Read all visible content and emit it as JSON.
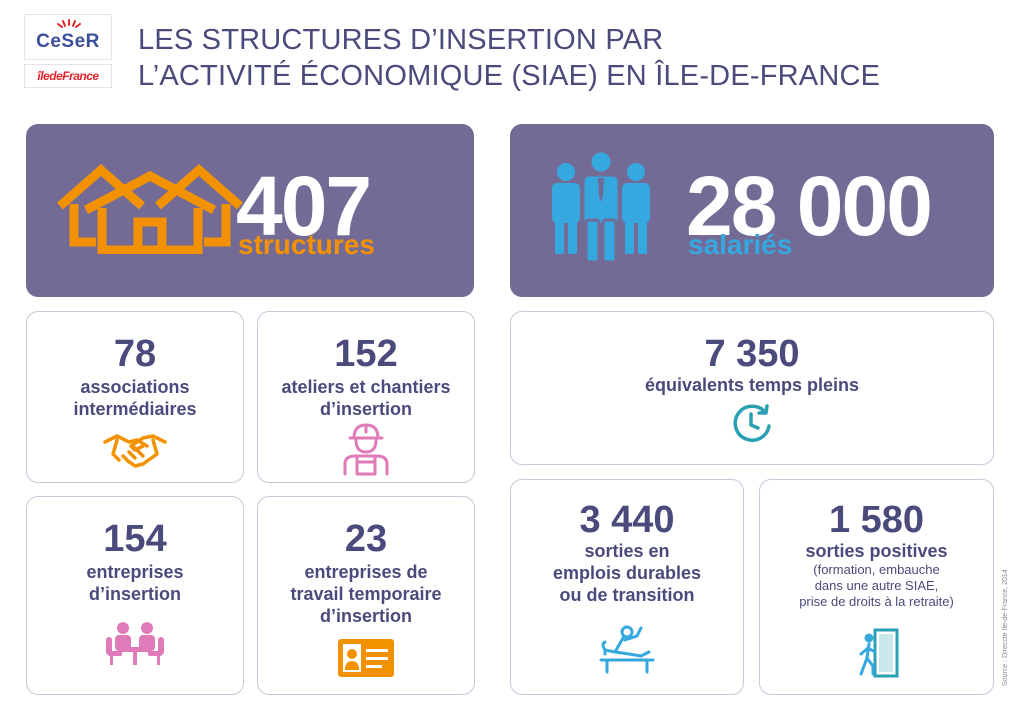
{
  "logos": {
    "ceser": "CeSeR",
    "idf": "îledeFrance"
  },
  "title": {
    "line1": "LES STRUCTURES D’INSERTION PAR",
    "line2": "L’ACTIVITÉ ÉCONOMIQUE (SIAE) EN ÎLE-DE-FRANCE"
  },
  "hero_structures": {
    "number": "407",
    "label": "structures"
  },
  "hero_employees": {
    "number": "28 000",
    "label": "salariés"
  },
  "cards": {
    "associations": {
      "number": "78",
      "label_lines": [
        "associations",
        "intermédiaires"
      ],
      "icon": "handshake-icon"
    },
    "ateliers": {
      "number": "152",
      "label_lines": [
        "ateliers et chantiers",
        "d’insertion"
      ],
      "icon": "worker-icon"
    },
    "entreprises": {
      "number": "154",
      "label_lines": [
        "entreprises",
        "d’insertion"
      ],
      "icon": "meeting-icon"
    },
    "temporaire": {
      "number": "23",
      "label_lines": [
        "entreprises de",
        "travail temporaire",
        "d’insertion"
      ],
      "icon": "id-card-icon"
    },
    "etp": {
      "number": "7 350",
      "label_lines": [
        "équivalents temps pleins"
      ],
      "icon": "clock-icon"
    },
    "sorties_durables": {
      "number": "3 440",
      "label_lines": [
        "sorties en",
        "emplois durables",
        "ou de transition"
      ],
      "icon": "relax-person-icon"
    },
    "sorties_positives": {
      "number": "1 580",
      "label_lines": [
        "sorties positives"
      ],
      "note_lines": [
        "(formation, embauche",
        "dans une autre SIAE,",
        "prise de droits à la retraite)"
      ],
      "icon": "exit-door-icon"
    }
  },
  "colors": {
    "hero_bg": "#736b95",
    "text": "#4b4a7c",
    "orange": "#f39200",
    "blue": "#35a8e0",
    "teal": "#2aa1b3",
    "pink": "#e07ab8",
    "border": "#c9c7d9"
  },
  "source": "Source : Direccte Ile-de-France, 2014"
}
